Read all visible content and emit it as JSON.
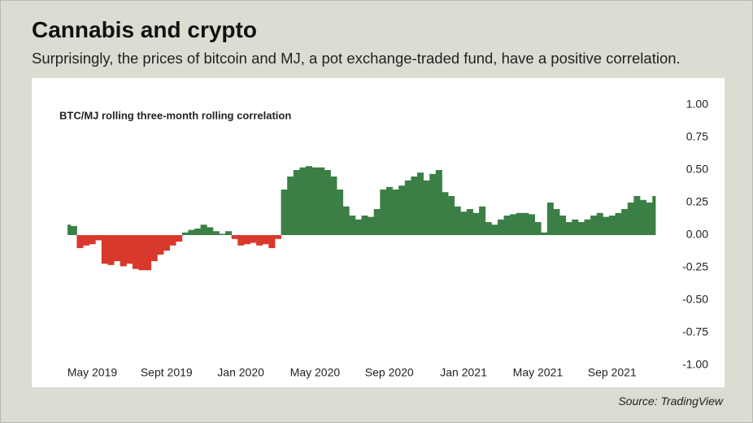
{
  "header": {
    "title": "Cannabis and crypto",
    "subtitle": "Surprisingly, the prices of bitcoin and MJ, a pot exchange-traded fund, have a positive correlation."
  },
  "source": "Source: TradingView",
  "chart_data": {
    "type": "area",
    "title": "BTC/MJ rolling three-month rolling correlation",
    "categories": [
      null,
      null,
      null,
      null,
      "May 2019",
      null,
      null,
      null,
      null,
      null,
      null,
      null,
      null,
      null,
      null,
      null,
      "Sept 2019",
      null,
      null,
      null,
      null,
      null,
      null,
      null,
      null,
      null,
      null,
      null,
      "Jan 2020",
      null,
      null,
      null,
      null,
      null,
      null,
      null,
      null,
      null,
      null,
      null,
      "May 2020",
      null,
      null,
      null,
      null,
      null,
      null,
      null,
      null,
      null,
      null,
      null,
      "Sep 2020",
      null,
      null,
      null,
      null,
      null,
      null,
      null,
      null,
      null,
      null,
      null,
      "Jan 2021",
      null,
      null,
      null,
      null,
      null,
      null,
      null,
      null,
      null,
      null,
      null,
      "May 2021",
      null,
      null,
      null,
      null,
      null,
      null,
      null,
      null,
      null,
      null,
      null,
      "Sep 2021",
      null,
      null,
      null,
      null,
      null,
      null,
      null
    ],
    "values": [
      0.08,
      0.07,
      -0.1,
      -0.08,
      -0.07,
      -0.04,
      -0.22,
      -0.23,
      -0.2,
      -0.24,
      -0.22,
      -0.26,
      -0.27,
      -0.27,
      -0.2,
      -0.15,
      -0.12,
      -0.08,
      -0.05,
      0.02,
      0.04,
      0.05,
      0.08,
      0.06,
      0.03,
      0.01,
      0.03,
      -0.03,
      -0.08,
      -0.07,
      -0.06,
      -0.08,
      -0.07,
      -0.1,
      -0.03,
      0.35,
      0.45,
      0.5,
      0.52,
      0.53,
      0.52,
      0.52,
      0.5,
      0.45,
      0.35,
      0.22,
      0.15,
      0.12,
      0.15,
      0.14,
      0.2,
      0.35,
      0.37,
      0.35,
      0.38,
      0.42,
      0.45,
      0.48,
      0.42,
      0.47,
      0.5,
      0.33,
      0.3,
      0.22,
      0.18,
      0.2,
      0.17,
      0.22,
      0.1,
      0.08,
      0.12,
      0.15,
      0.16,
      0.17,
      0.17,
      0.16,
      0.1,
      0.02,
      0.25,
      0.2,
      0.15,
      0.1,
      0.12,
      0.1,
      0.12,
      0.15,
      0.17,
      0.14,
      0.15,
      0.17,
      0.2,
      0.25,
      0.3,
      0.27,
      0.25,
      0.3
    ],
    "positive_color": "#3b7f47",
    "negative_color": "#d8392c",
    "ylim": [
      -1,
      1
    ],
    "yticks": [
      {
        "value": 1,
        "label": "1.00"
      },
      {
        "value": 0.75,
        "label": "0.75"
      },
      {
        "value": 0.5,
        "label": "0.50"
      },
      {
        "value": 0.25,
        "label": "0.25"
      },
      {
        "value": 0,
        "label": "0.00"
      },
      {
        "value": -0.25,
        "label": "-0.25"
      },
      {
        "value": -0.5,
        "label": "-0.50"
      },
      {
        "value": -0.75,
        "label": "-0.75"
      },
      {
        "value": -1,
        "label": "-1.00"
      }
    ]
  }
}
